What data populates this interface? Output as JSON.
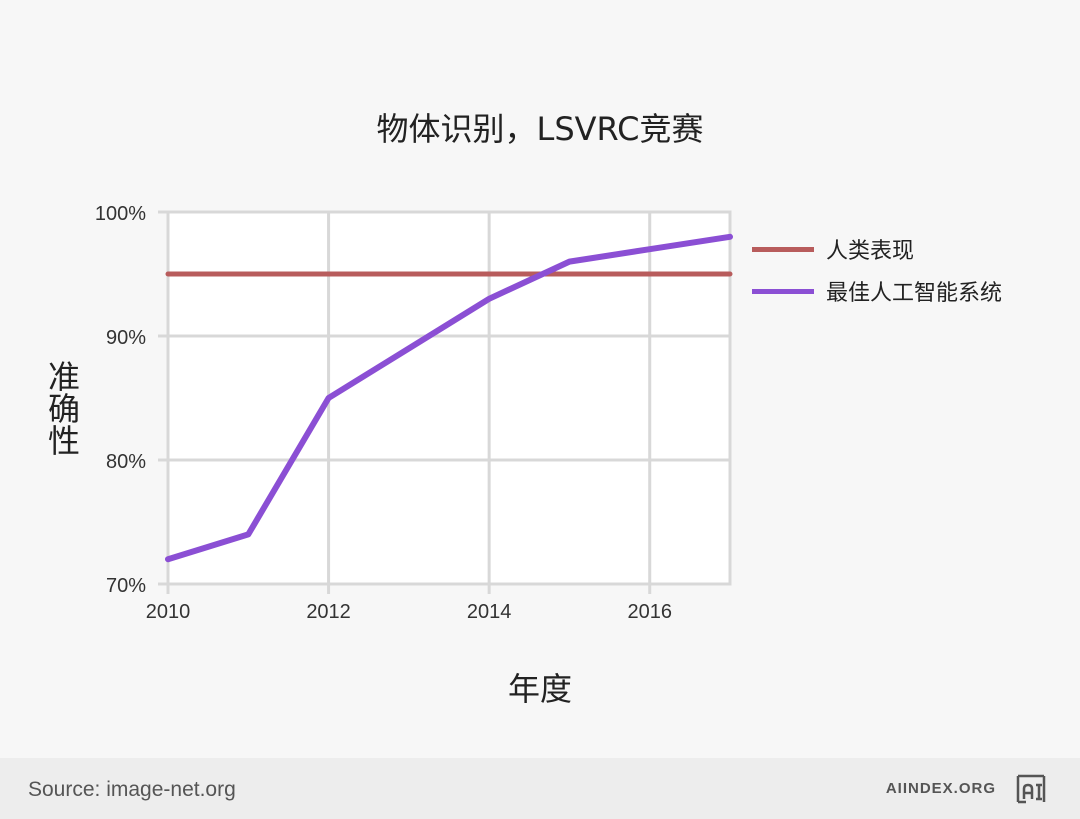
{
  "chart_data": {
    "type": "line",
    "title": "物体识别，LSVRC竞赛",
    "xlabel": "年度",
    "ylabel": "准确性",
    "x": [
      2010,
      2011,
      2012,
      2013,
      2014,
      2015,
      2016,
      2017
    ],
    "xticks": [
      "2010",
      "2012",
      "2014",
      "2016"
    ],
    "yticks": [
      "70%",
      "80%",
      "90%",
      "100%"
    ],
    "xlim": [
      2010,
      2017.5
    ],
    "ylim": [
      70,
      100
    ],
    "grid": true,
    "legend_position": "right",
    "series": [
      {
        "name": "人类表现",
        "color": "#b85c5c",
        "values": [
          95,
          95,
          95,
          95,
          95,
          95,
          95,
          95
        ]
      },
      {
        "name": "最佳人工智能系统",
        "color": "#8b4fd4",
        "values": [
          72,
          74,
          85,
          89,
          93,
          96,
          97,
          98
        ]
      }
    ]
  },
  "footer": {
    "source": "Source: image-net.org",
    "brand": "AIINDEX.ORG",
    "logo_icon": "ai-index-logo-icon"
  }
}
